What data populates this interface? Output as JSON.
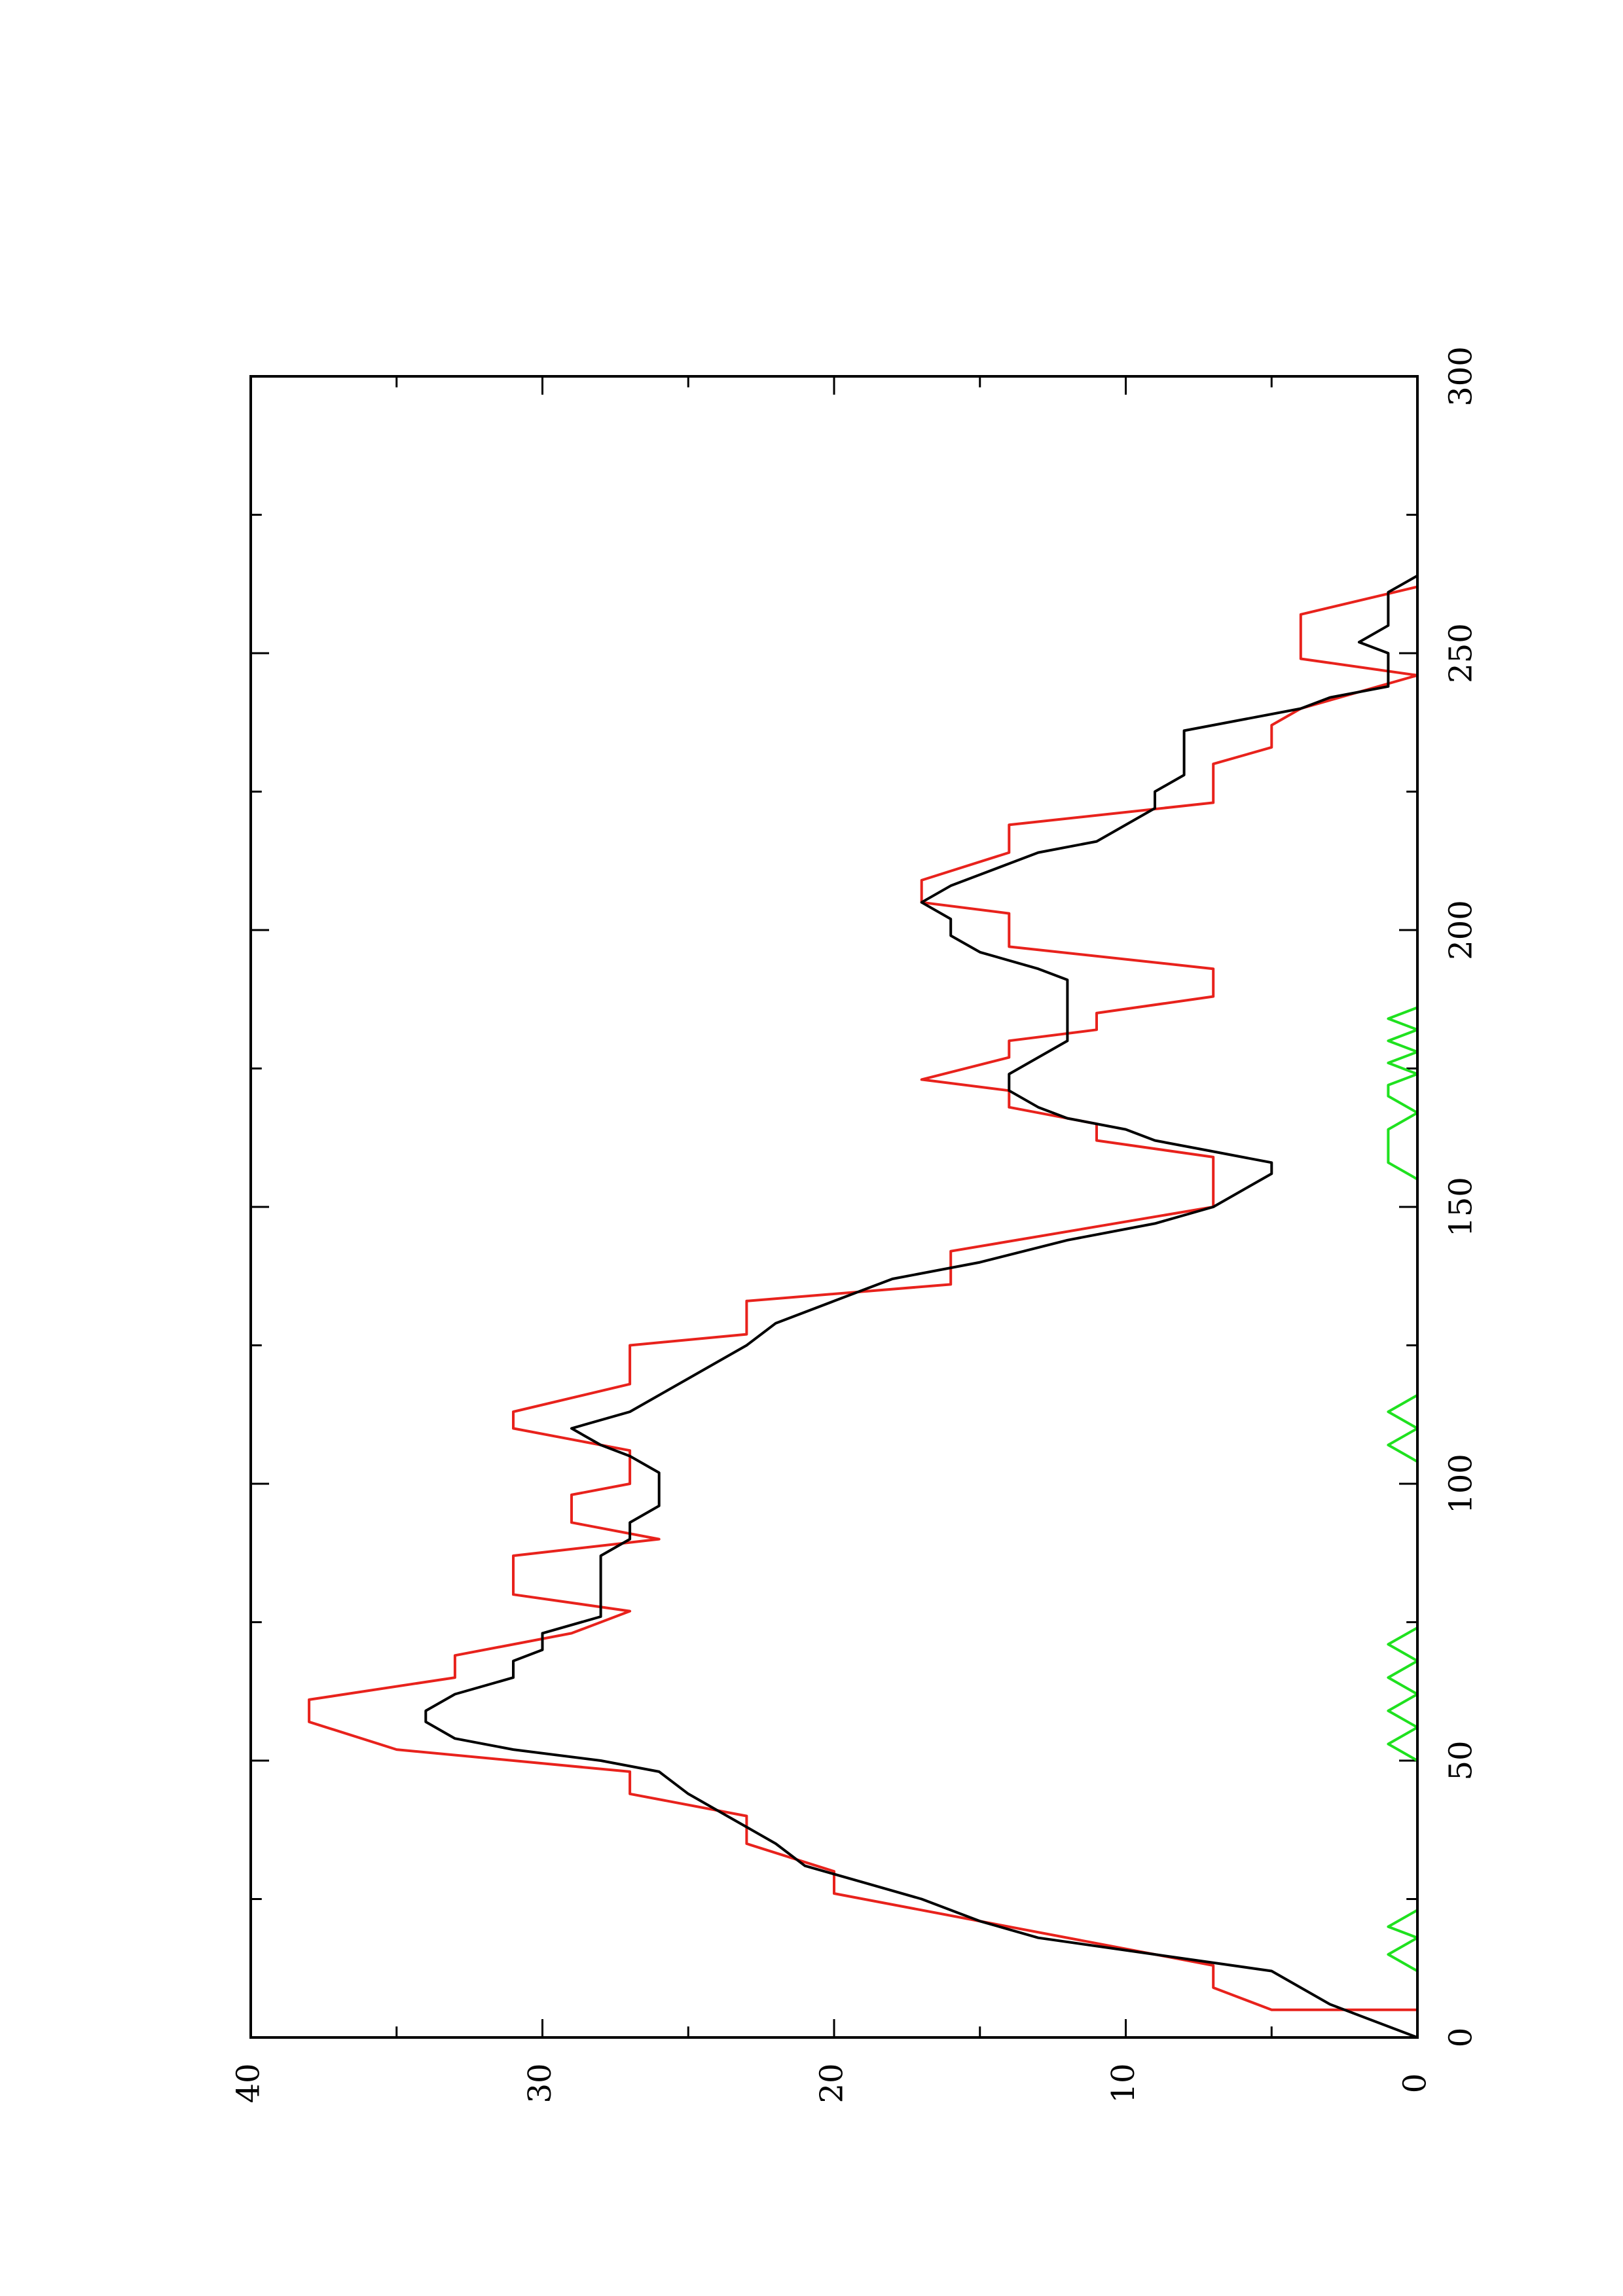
{
  "chart_data": {
    "type": "line",
    "orientation": "rotated-90-ccw",
    "title": "",
    "xlabel": "",
    "ylabel": "",
    "xlim": [
      0,
      300
    ],
    "ylim": [
      0,
      40
    ],
    "x_ticks": [
      0,
      50,
      100,
      150,
      200,
      250,
      300
    ],
    "y_ticks": [
      0,
      10,
      20,
      30,
      40
    ],
    "x_tick_labels": [
      "0",
      "50",
      "100",
      "150",
      "200",
      "250",
      "300"
    ],
    "y_tick_labels": [
      "0",
      "10",
      "20",
      "30",
      "40"
    ],
    "grid": false,
    "legend": "none",
    "series": [
      {
        "color": "#e8221c",
        "style": "step",
        "points": [
          [
            0,
            0
          ],
          [
            5,
            0
          ],
          [
            5,
            5
          ],
          [
            9,
            7
          ],
          [
            13,
            7
          ],
          [
            26,
            20
          ],
          [
            30,
            20
          ],
          [
            35,
            23
          ],
          [
            40,
            23
          ],
          [
            44,
            27
          ],
          [
            48,
            27
          ],
          [
            52,
            35
          ],
          [
            57,
            38
          ],
          [
            61,
            38
          ],
          [
            65,
            33
          ],
          [
            69,
            33
          ],
          [
            73,
            29
          ],
          [
            77,
            27
          ],
          [
            80,
            31
          ],
          [
            87,
            31
          ],
          [
            90,
            26
          ],
          [
            93,
            29
          ],
          [
            98,
            29
          ],
          [
            100,
            27
          ],
          [
            106,
            27
          ],
          [
            110,
            31
          ],
          [
            113,
            31
          ],
          [
            118,
            27
          ],
          [
            125,
            27
          ],
          [
            127,
            23
          ],
          [
            133,
            23
          ],
          [
            136,
            16
          ],
          [
            142,
            16
          ],
          [
            150,
            7
          ],
          [
            159,
            7
          ],
          [
            162,
            11
          ],
          [
            165,
            11
          ],
          [
            168,
            14
          ],
          [
            171,
            14
          ],
          [
            173,
            17
          ],
          [
            177,
            14
          ],
          [
            180,
            14
          ],
          [
            182,
            11
          ],
          [
            185,
            11
          ],
          [
            188,
            7
          ],
          [
            193,
            7
          ],
          [
            197,
            14
          ],
          [
            203,
            14
          ],
          [
            205,
            17
          ],
          [
            209,
            17
          ],
          [
            214,
            14
          ],
          [
            219,
            14
          ],
          [
            223,
            7
          ],
          [
            230,
            7
          ],
          [
            233,
            5
          ],
          [
            237,
            5
          ],
          [
            240,
            4
          ],
          [
            246,
            0
          ],
          [
            249,
            4
          ],
          [
            257,
            4
          ],
          [
            262,
            0
          ],
          [
            270,
            0
          ]
        ]
      },
      {
        "color": "#000000",
        "style": "line",
        "points": [
          [
            0,
            0
          ],
          [
            2,
            1
          ],
          [
            4,
            2
          ],
          [
            6,
            3
          ],
          [
            9,
            4
          ],
          [
            12,
            5
          ],
          [
            15,
            9
          ],
          [
            18,
            13
          ],
          [
            21,
            15
          ],
          [
            25,
            17
          ],
          [
            28,
            19
          ],
          [
            31,
            21
          ],
          [
            35,
            22
          ],
          [
            38,
            23
          ],
          [
            41,
            24
          ],
          [
            44,
            25
          ],
          [
            48,
            26
          ],
          [
            50,
            28
          ],
          [
            52,
            31
          ],
          [
            54,
            33
          ],
          [
            57,
            34
          ],
          [
            59,
            34
          ],
          [
            62,
            33
          ],
          [
            65,
            31
          ],
          [
            68,
            31
          ],
          [
            70,
            30
          ],
          [
            73,
            30
          ],
          [
            76,
            28
          ],
          [
            79,
            28
          ],
          [
            83,
            28
          ],
          [
            87,
            28
          ],
          [
            90,
            27
          ],
          [
            93,
            27
          ],
          [
            96,
            26
          ],
          [
            99,
            26
          ],
          [
            102,
            26
          ],
          [
            105,
            27
          ],
          [
            107,
            28
          ],
          [
            110,
            29
          ],
          [
            113,
            27
          ],
          [
            116,
            26
          ],
          [
            119,
            25
          ],
          [
            122,
            24
          ],
          [
            125,
            23
          ],
          [
            129,
            22
          ],
          [
            133,
            20
          ],
          [
            137,
            18
          ],
          [
            140,
            15
          ],
          [
            144,
            12
          ],
          [
            147,
            9
          ],
          [
            150,
            7
          ],
          [
            153,
            6
          ],
          [
            156,
            5
          ],
          [
            158,
            5
          ],
          [
            160,
            7
          ],
          [
            162,
            9
          ],
          [
            164,
            10
          ],
          [
            166,
            12
          ],
          [
            168,
            13
          ],
          [
            171,
            14
          ],
          [
            174,
            14
          ],
          [
            177,
            13
          ],
          [
            180,
            12
          ],
          [
            183,
            12
          ],
          [
            186,
            12
          ],
          [
            189,
            12
          ],
          [
            191,
            12
          ],
          [
            193,
            13
          ],
          [
            196,
            15
          ],
          [
            199,
            16
          ],
          [
            202,
            16
          ],
          [
            205,
            17
          ],
          [
            208,
            16
          ],
          [
            210,
            15
          ],
          [
            212,
            14
          ],
          [
            214,
            13
          ],
          [
            216,
            11
          ],
          [
            219,
            10
          ],
          [
            222,
            9
          ],
          [
            225,
            9
          ],
          [
            228,
            8
          ],
          [
            231,
            8
          ],
          [
            234,
            8
          ],
          [
            236,
            8
          ],
          [
            238,
            6
          ],
          [
            240,
            4
          ],
          [
            242,
            3
          ],
          [
            244,
            1
          ],
          [
            246,
            1
          ],
          [
            248,
            1
          ],
          [
            250,
            1
          ],
          [
            252,
            2
          ],
          [
            255,
            1
          ],
          [
            258,
            1
          ],
          [
            261,
            1
          ],
          [
            264,
            0
          ],
          [
            267,
            0
          ]
        ]
      },
      {
        "color": "#1fe11f",
        "style": "line",
        "points": [
          [
            0,
            0
          ],
          [
            3,
            0
          ],
          [
            6,
            0
          ],
          [
            9,
            0
          ],
          [
            12,
            0
          ],
          [
            15,
            1
          ],
          [
            18,
            0
          ],
          [
            20,
            1
          ],
          [
            23,
            0
          ],
          [
            26,
            0
          ],
          [
            29,
            0
          ],
          [
            32,
            0
          ],
          [
            35,
            0
          ],
          [
            38,
            0
          ],
          [
            41,
            0
          ],
          [
            44,
            0
          ],
          [
            47,
            0
          ],
          [
            50,
            0
          ],
          [
            53,
            1
          ],
          [
            56,
            0
          ],
          [
            59,
            1
          ],
          [
            62,
            0
          ],
          [
            65,
            1
          ],
          [
            68,
            0
          ],
          [
            71,
            1
          ],
          [
            74,
            0
          ],
          [
            77,
            0
          ],
          [
            80,
            0
          ],
          [
            83,
            0
          ],
          [
            86,
            0
          ],
          [
            89,
            0
          ],
          [
            92,
            0
          ],
          [
            95,
            0
          ],
          [
            98,
            0
          ],
          [
            101,
            0
          ],
          [
            104,
            0
          ],
          [
            107,
            1
          ],
          [
            110,
            0
          ],
          [
            113,
            1
          ],
          [
            116,
            0
          ],
          [
            119,
            0
          ],
          [
            122,
            0
          ],
          [
            125,
            0
          ],
          [
            128,
            0
          ],
          [
            131,
            0
          ],
          [
            134,
            0
          ],
          [
            137,
            0
          ],
          [
            140,
            0
          ],
          [
            143,
            0
          ],
          [
            146,
            0
          ],
          [
            149,
            0
          ],
          [
            152,
            0
          ],
          [
            155,
            0
          ],
          [
            158,
            1
          ],
          [
            161,
            1
          ],
          [
            164,
            1
          ],
          [
            167,
            0
          ],
          [
            170,
            1
          ],
          [
            172,
            1
          ],
          [
            174,
            0
          ],
          [
            176,
            1
          ],
          [
            178,
            0
          ],
          [
            180,
            1
          ],
          [
            182,
            0
          ],
          [
            184,
            1
          ],
          [
            186,
            0
          ],
          [
            189,
            0
          ],
          [
            192,
            0
          ],
          [
            195,
            0
          ],
          [
            198,
            0
          ],
          [
            201,
            0
          ],
          [
            204,
            0
          ],
          [
            207,
            0
          ],
          [
            210,
            0
          ],
          [
            213,
            0
          ],
          [
            216,
            0
          ],
          [
            219,
            0
          ],
          [
            222,
            0
          ],
          [
            225,
            0
          ],
          [
            228,
            0
          ],
          [
            231,
            0
          ],
          [
            234,
            0
          ],
          [
            237,
            0
          ],
          [
            240,
            0
          ],
          [
            243,
            0
          ],
          [
            246,
            0
          ],
          [
            249,
            0
          ],
          [
            252,
            0
          ],
          [
            255,
            0
          ],
          [
            258,
            0
          ],
          [
            261,
            0
          ],
          [
            264,
            0
          ],
          [
            267,
            0
          ],
          [
            270,
            0
          ]
        ]
      }
    ]
  }
}
